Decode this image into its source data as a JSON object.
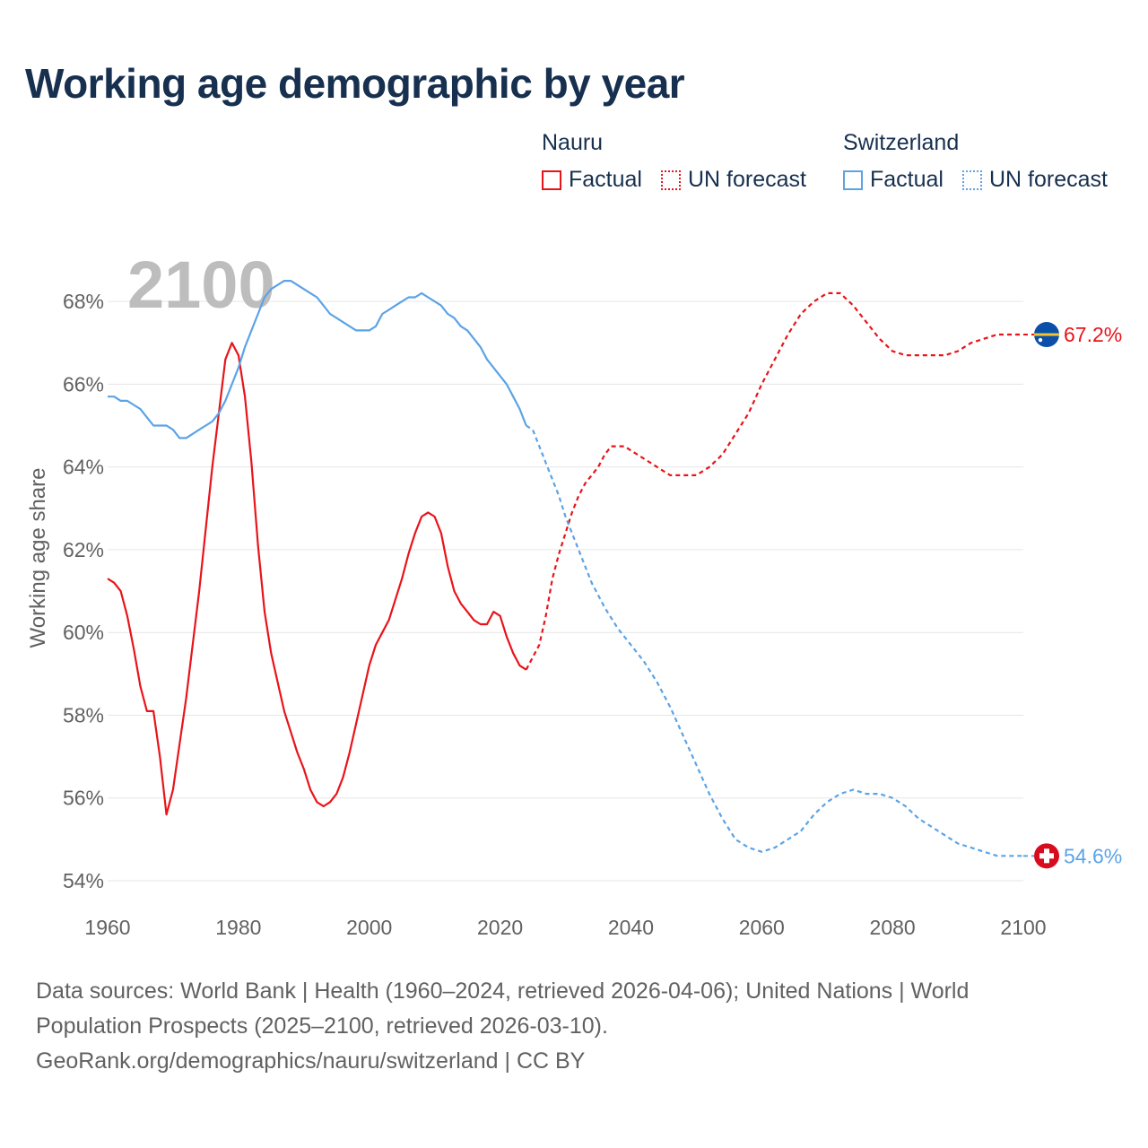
{
  "title": "Working age demographic by year",
  "legend": {
    "groups": [
      {
        "name": "Nauru",
        "factual_label": "Factual",
        "forecast_label": "UN forecast",
        "color": "#e8141a"
      },
      {
        "name": "Switzerland",
        "factual_label": "Factual",
        "forecast_label": "UN forecast",
        "color": "#5ba3e6"
      }
    ]
  },
  "year_watermark": "2100",
  "footer": {
    "line1": "Data sources: World Bank | Health (1960–2024, retrieved 2026-04-06); United Nations | World",
    "line2": "Population Prospects (2025–2100, retrieved 2026-03-10).",
    "line3": "GeoRank.org/demographics/nauru/switzerland | CC BY"
  },
  "chart_data": {
    "type": "line",
    "title": "Working age demographic by year",
    "xlabel": "",
    "ylabel": "Working age share",
    "xlim": [
      1960,
      2100
    ],
    "ylim": [
      54,
      69
    ],
    "x_ticks": [
      1960,
      1980,
      2000,
      2020,
      2040,
      2060,
      2080,
      2100
    ],
    "y_ticks": [
      54,
      56,
      58,
      60,
      62,
      64,
      66,
      68
    ],
    "y_tick_labels": [
      "54%",
      "56%",
      "58%",
      "60%",
      "62%",
      "64%",
      "66%",
      "68%"
    ],
    "x_tick_labels": [
      "1960",
      "1980",
      "2000",
      "2020",
      "2040",
      "2060",
      "2080",
      "2100"
    ],
    "grid": true,
    "factual_until": 2024,
    "series": [
      {
        "name": "Nauru",
        "color": "#e8141a",
        "end_label": "67.2%",
        "flag": "nauru-flag",
        "points": [
          [
            1960,
            61.3
          ],
          [
            1961,
            61.2
          ],
          [
            1962,
            61.0
          ],
          [
            1963,
            60.4
          ],
          [
            1964,
            59.6
          ],
          [
            1965,
            58.7
          ],
          [
            1966,
            58.1
          ],
          [
            1967,
            58.1
          ],
          [
            1968,
            57.0
          ],
          [
            1969,
            55.6
          ],
          [
            1970,
            56.2
          ],
          [
            1972,
            58.4
          ],
          [
            1974,
            61.0
          ],
          [
            1976,
            64.0
          ],
          [
            1977,
            65.3
          ],
          [
            1978,
            66.6
          ],
          [
            1979,
            67.0
          ],
          [
            1980,
            66.7
          ],
          [
            1981,
            65.7
          ],
          [
            1982,
            64.1
          ],
          [
            1983,
            62.1
          ],
          [
            1984,
            60.5
          ],
          [
            1985,
            59.5
          ],
          [
            1986,
            58.8
          ],
          [
            1987,
            58.1
          ],
          [
            1988,
            57.6
          ],
          [
            1989,
            57.1
          ],
          [
            1990,
            56.7
          ],
          [
            1991,
            56.2
          ],
          [
            1992,
            55.9
          ],
          [
            1993,
            55.8
          ],
          [
            1994,
            55.9
          ],
          [
            1995,
            56.1
          ],
          [
            1996,
            56.5
          ],
          [
            1997,
            57.1
          ],
          [
            1998,
            57.8
          ],
          [
            1999,
            58.5
          ],
          [
            2000,
            59.2
          ],
          [
            2001,
            59.7
          ],
          [
            2002,
            60.0
          ],
          [
            2003,
            60.3
          ],
          [
            2004,
            60.8
          ],
          [
            2005,
            61.3
          ],
          [
            2006,
            61.9
          ],
          [
            2007,
            62.4
          ],
          [
            2008,
            62.8
          ],
          [
            2009,
            62.9
          ],
          [
            2010,
            62.8
          ],
          [
            2011,
            62.4
          ],
          [
            2012,
            61.6
          ],
          [
            2013,
            61.0
          ],
          [
            2014,
            60.7
          ],
          [
            2015,
            60.5
          ],
          [
            2016,
            60.3
          ],
          [
            2017,
            60.2
          ],
          [
            2018,
            60.2
          ],
          [
            2019,
            60.5
          ],
          [
            2020,
            60.4
          ],
          [
            2021,
            59.9
          ],
          [
            2022,
            59.5
          ],
          [
            2023,
            59.2
          ],
          [
            2024,
            59.1
          ],
          [
            2025,
            59.4
          ],
          [
            2026,
            59.7
          ],
          [
            2027,
            60.4
          ],
          [
            2028,
            61.3
          ],
          [
            2029,
            61.9
          ],
          [
            2030,
            62.4
          ],
          [
            2031,
            62.9
          ],
          [
            2032,
            63.3
          ],
          [
            2033,
            63.6
          ],
          [
            2034,
            63.8
          ],
          [
            2035,
            64.0
          ],
          [
            2036,
            64.3
          ],
          [
            2037,
            64.5
          ],
          [
            2038,
            64.5
          ],
          [
            2039,
            64.5
          ],
          [
            2040,
            64.4
          ],
          [
            2042,
            64.2
          ],
          [
            2044,
            64.0
          ],
          [
            2046,
            63.8
          ],
          [
            2048,
            63.8
          ],
          [
            2050,
            63.8
          ],
          [
            2052,
            64.0
          ],
          [
            2054,
            64.3
          ],
          [
            2056,
            64.8
          ],
          [
            2058,
            65.3
          ],
          [
            2060,
            66.0
          ],
          [
            2062,
            66.6
          ],
          [
            2064,
            67.2
          ],
          [
            2066,
            67.7
          ],
          [
            2068,
            68.0
          ],
          [
            2070,
            68.2
          ],
          [
            2072,
            68.2
          ],
          [
            2074,
            67.9
          ],
          [
            2076,
            67.5
          ],
          [
            2078,
            67.1
          ],
          [
            2080,
            66.8
          ],
          [
            2082,
            66.7
          ],
          [
            2084,
            66.7
          ],
          [
            2086,
            66.7
          ],
          [
            2088,
            66.7
          ],
          [
            2090,
            66.8
          ],
          [
            2092,
            67.0
          ],
          [
            2094,
            67.1
          ],
          [
            2096,
            67.2
          ],
          [
            2098,
            67.2
          ],
          [
            2100,
            67.2
          ]
        ]
      },
      {
        "name": "Switzerland",
        "color": "#5ba3e6",
        "end_label": "54.6%",
        "flag": "switzerland-flag",
        "points": [
          [
            1960,
            65.7
          ],
          [
            1961,
            65.7
          ],
          [
            1962,
            65.6
          ],
          [
            1963,
            65.6
          ],
          [
            1964,
            65.5
          ],
          [
            1965,
            65.4
          ],
          [
            1966,
            65.2
          ],
          [
            1967,
            65.0
          ],
          [
            1968,
            65.0
          ],
          [
            1969,
            65.0
          ],
          [
            1970,
            64.9
          ],
          [
            1971,
            64.7
          ],
          [
            1972,
            64.7
          ],
          [
            1973,
            64.8
          ],
          [
            1974,
            64.9
          ],
          [
            1975,
            65.0
          ],
          [
            1976,
            65.1
          ],
          [
            1977,
            65.3
          ],
          [
            1978,
            65.6
          ],
          [
            1979,
            66.0
          ],
          [
            1980,
            66.4
          ],
          [
            1981,
            66.9
          ],
          [
            1982,
            67.3
          ],
          [
            1983,
            67.7
          ],
          [
            1984,
            68.1
          ],
          [
            1985,
            68.3
          ],
          [
            1986,
            68.4
          ],
          [
            1987,
            68.5
          ],
          [
            1988,
            68.5
          ],
          [
            1989,
            68.4
          ],
          [
            1990,
            68.3
          ],
          [
            1991,
            68.2
          ],
          [
            1992,
            68.1
          ],
          [
            1993,
            67.9
          ],
          [
            1994,
            67.7
          ],
          [
            1995,
            67.6
          ],
          [
            1996,
            67.5
          ],
          [
            1997,
            67.4
          ],
          [
            1998,
            67.3
          ],
          [
            1999,
            67.3
          ],
          [
            2000,
            67.3
          ],
          [
            2001,
            67.4
          ],
          [
            2002,
            67.7
          ],
          [
            2003,
            67.8
          ],
          [
            2004,
            67.9
          ],
          [
            2005,
            68.0
          ],
          [
            2006,
            68.1
          ],
          [
            2007,
            68.1
          ],
          [
            2008,
            68.2
          ],
          [
            2009,
            68.1
          ],
          [
            2010,
            68.0
          ],
          [
            2011,
            67.9
          ],
          [
            2012,
            67.7
          ],
          [
            2013,
            67.6
          ],
          [
            2014,
            67.4
          ],
          [
            2015,
            67.3
          ],
          [
            2016,
            67.1
          ],
          [
            2017,
            66.9
          ],
          [
            2018,
            66.6
          ],
          [
            2019,
            66.4
          ],
          [
            2020,
            66.2
          ],
          [
            2021,
            66.0
          ],
          [
            2022,
            65.7
          ],
          [
            2023,
            65.4
          ],
          [
            2024,
            65.0
          ],
          [
            2025,
            64.9
          ],
          [
            2026,
            64.5
          ],
          [
            2027,
            64.1
          ],
          [
            2028,
            63.7
          ],
          [
            2029,
            63.3
          ],
          [
            2030,
            62.8
          ],
          [
            2032,
            62.0
          ],
          [
            2034,
            61.2
          ],
          [
            2036,
            60.6
          ],
          [
            2038,
            60.1
          ],
          [
            2040,
            59.7
          ],
          [
            2042,
            59.3
          ],
          [
            2044,
            58.8
          ],
          [
            2046,
            58.2
          ],
          [
            2048,
            57.5
          ],
          [
            2050,
            56.8
          ],
          [
            2052,
            56.1
          ],
          [
            2054,
            55.5
          ],
          [
            2056,
            55.0
          ],
          [
            2058,
            54.8
          ],
          [
            2060,
            54.7
          ],
          [
            2062,
            54.8
          ],
          [
            2064,
            55.0
          ],
          [
            2066,
            55.2
          ],
          [
            2068,
            55.6
          ],
          [
            2070,
            55.9
          ],
          [
            2072,
            56.1
          ],
          [
            2074,
            56.2
          ],
          [
            2076,
            56.1
          ],
          [
            2078,
            56.1
          ],
          [
            2080,
            56.0
          ],
          [
            2082,
            55.8
          ],
          [
            2084,
            55.5
          ],
          [
            2086,
            55.3
          ],
          [
            2088,
            55.1
          ],
          [
            2090,
            54.9
          ],
          [
            2092,
            54.8
          ],
          [
            2094,
            54.7
          ],
          [
            2096,
            54.6
          ],
          [
            2098,
            54.6
          ],
          [
            2100,
            54.6
          ]
        ]
      }
    ]
  }
}
